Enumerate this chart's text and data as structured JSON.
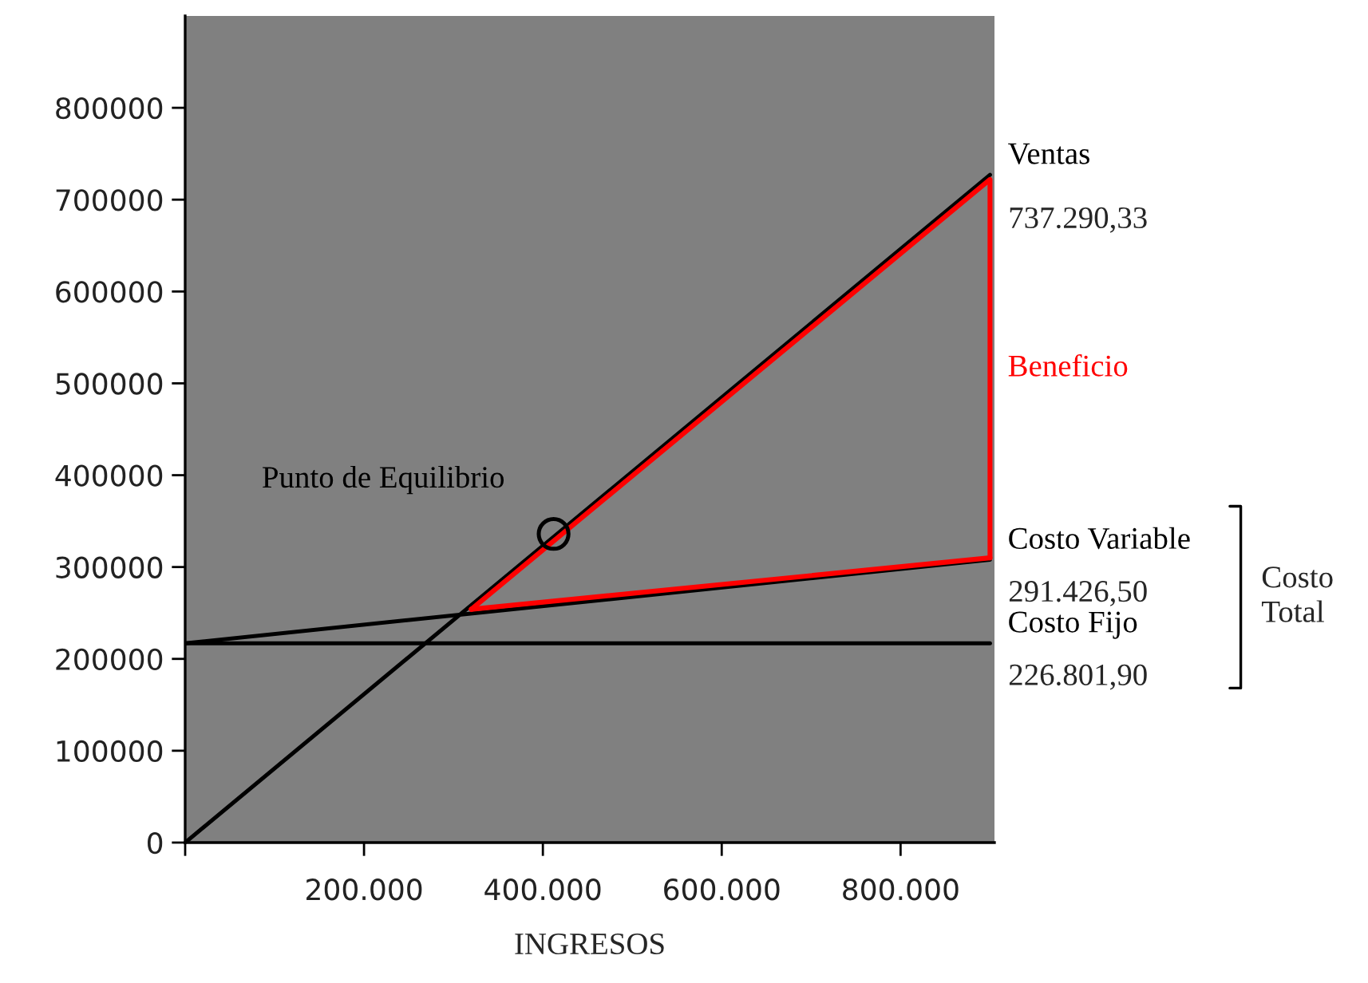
{
  "chart_data": {
    "type": "line",
    "xlabel": "INGRESOS",
    "xlim": [
      0,
      905000
    ],
    "ylim": [
      0,
      900000
    ],
    "xticks": [
      {
        "value": 0,
        "label": null
      },
      {
        "value": 200000,
        "label": "200.000"
      },
      {
        "value": 400000,
        "label": "400.000"
      },
      {
        "value": 600000,
        "label": "600.000"
      },
      {
        "value": 800000,
        "label": "800.000"
      }
    ],
    "yticks": [
      0,
      100000,
      200000,
      300000,
      400000,
      500000,
      600000,
      700000,
      800000
    ],
    "grid": false,
    "legend": false,
    "series": [
      {
        "name": "Ventas",
        "color": "#000000",
        "x": [
          0,
          900000
        ],
        "values": [
          0,
          727000
        ]
      },
      {
        "name": "Costo Fijo",
        "color": "#000000",
        "x": [
          0,
          900000
        ],
        "values": [
          217000,
          217000
        ]
      },
      {
        "name": "Costo Variable",
        "color": "#000000",
        "x": [
          0,
          900000
        ],
        "values": [
          217000,
          308000
        ]
      },
      {
        "name": "Beneficio",
        "color": "#ff0000",
        "x": [
          320000,
          900000,
          900000
        ],
        "values": [
          254000,
          722000,
          310000
        ]
      },
      {
        "color": "#ff0000",
        "x": [
          320000,
          900000
        ],
        "values": [
          254000,
          310000
        ]
      },
      {
        "name": "Punto de Equilibrio",
        "type": "scatter",
        "marker": "circle",
        "color": "#000000",
        "x": [
          412000
        ],
        "values": [
          336000
        ]
      }
    ],
    "annotations": [
      "737.290,33",
      "291.426,50",
      "226.801,90",
      "Costo Total"
    ]
  }
}
